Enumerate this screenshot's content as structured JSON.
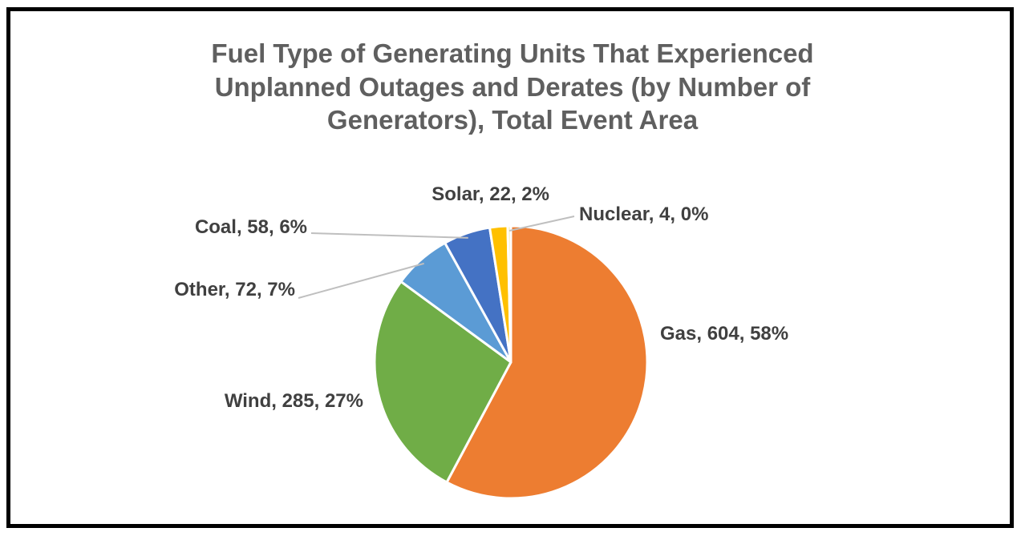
{
  "chart_data": {
    "type": "pie",
    "title": "Fuel Type of Generating Units That Experienced\nUnplanned Outages and Derates (by Number of\nGenerators), Total Event Area",
    "slices": [
      {
        "name": "Gas",
        "value": 604,
        "percent": "58%",
        "color": "#ED7D31",
        "label": "Gas, 604, 58%"
      },
      {
        "name": "Wind",
        "value": 285,
        "percent": "27%",
        "color": "#70AD47",
        "label": "Wind, 285, 27%"
      },
      {
        "name": "Other",
        "value": 72,
        "percent": "7%",
        "color": "#5B9BD5",
        "label": "Other, 72, 7%"
      },
      {
        "name": "Coal",
        "value": 58,
        "percent": "6%",
        "color": "#4472C4",
        "label": "Coal, 58, 6%"
      },
      {
        "name": "Solar",
        "value": 22,
        "percent": "2%",
        "color": "#FFC000",
        "label": "Solar, 22, 2%"
      },
      {
        "name": "Nuclear",
        "value": 4,
        "percent": "0%",
        "color": "#F8E9A1",
        "label": "Nuclear, 4, 0%"
      }
    ]
  }
}
